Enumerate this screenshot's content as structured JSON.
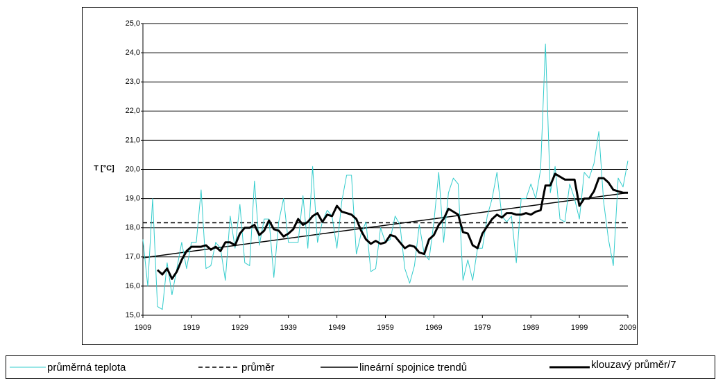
{
  "chart_data": {
    "type": "line",
    "ylabel": "T [°C]",
    "x": [
      1909,
      1910,
      1911,
      1912,
      1913,
      1914,
      1915,
      1916,
      1917,
      1918,
      1919,
      1920,
      1921,
      1922,
      1923,
      1924,
      1925,
      1926,
      1927,
      1928,
      1929,
      1930,
      1931,
      1932,
      1933,
      1934,
      1935,
      1936,
      1937,
      1938,
      1939,
      1940,
      1941,
      1942,
      1943,
      1944,
      1945,
      1946,
      1947,
      1948,
      1949,
      1950,
      1951,
      1952,
      1953,
      1954,
      1955,
      1956,
      1957,
      1958,
      1959,
      1960,
      1961,
      1962,
      1963,
      1964,
      1965,
      1966,
      1967,
      1968,
      1969,
      1970,
      1971,
      1972,
      1973,
      1974,
      1975,
      1976,
      1977,
      1978,
      1979,
      1980,
      1981,
      1982,
      1983,
      1984,
      1985,
      1986,
      1987,
      1988,
      1989,
      1990,
      1991,
      1992,
      1993,
      1994,
      1995,
      1996,
      1997,
      1998,
      1999,
      2000,
      2001,
      2002,
      2003,
      2004,
      2005,
      2006,
      2007,
      2008,
      2009
    ],
    "series": [
      {
        "name": "průměrná teplota",
        "color": "#33cccc",
        "width": 1,
        "values": [
          17.6,
          16.0,
          19.0,
          15.3,
          15.2,
          16.8,
          15.7,
          16.6,
          17.5,
          16.6,
          17.5,
          17.5,
          19.3,
          16.6,
          16.7,
          17.5,
          17.3,
          16.2,
          18.4,
          17.3,
          18.8,
          16.8,
          16.7,
          19.6,
          17.4,
          18.3,
          18.3,
          16.3,
          18.2,
          19.0,
          17.5,
          17.5,
          17.5,
          19.1,
          17.3,
          20.1,
          17.5,
          18.2,
          18.6,
          18.4,
          17.3,
          18.9,
          19.8,
          19.8,
          17.1,
          17.8,
          18.2,
          16.5,
          16.6,
          18.0,
          17.5,
          17.6,
          18.4,
          18.1,
          16.6,
          16.1,
          16.7,
          18.1,
          17.1,
          16.9,
          18.2,
          19.9,
          17.5,
          19.2,
          19.7,
          19.5,
          16.2,
          16.9,
          16.2,
          17.3,
          17.3,
          18.4,
          19.0,
          19.9,
          18.4,
          18.2,
          18.4,
          16.8,
          19.0,
          19.0,
          19.5,
          19.0,
          20.0,
          24.3,
          19.2,
          20.1,
          18.3,
          18.2,
          19.5,
          19.0,
          18.3,
          19.9,
          19.7,
          20.2,
          21.3,
          18.9,
          17.6,
          16.7,
          19.7,
          19.4,
          20.3
        ]
      },
      {
        "name": "klouzavý průměr/7",
        "color": "#000000",
        "width": 3,
        "values": [
          null,
          null,
          null,
          16.55,
          16.4,
          16.6,
          16.25,
          16.5,
          16.9,
          17.2,
          17.35,
          17.35,
          17.35,
          17.4,
          17.25,
          17.35,
          17.2,
          17.5,
          17.5,
          17.4,
          17.8,
          18.0,
          18.0,
          18.1,
          17.75,
          17.9,
          18.25,
          17.95,
          17.9,
          17.7,
          17.8,
          17.95,
          18.3,
          18.1,
          18.2,
          18.4,
          18.5,
          18.2,
          18.45,
          18.4,
          18.75,
          18.55,
          18.5,
          18.45,
          18.3,
          17.9,
          17.6,
          17.45,
          17.55,
          17.45,
          17.5,
          17.75,
          17.7,
          17.5,
          17.3,
          17.4,
          17.35,
          17.15,
          17.1,
          17.6,
          17.75,
          18.1,
          18.3,
          18.65,
          18.55,
          18.45,
          17.85,
          17.8,
          17.4,
          17.3,
          17.8,
          18.05,
          18.3,
          18.45,
          18.35,
          18.5,
          18.5,
          18.45,
          18.45,
          18.5,
          18.45,
          18.55,
          18.6,
          19.45,
          19.45,
          19.85,
          19.75,
          19.65,
          19.65,
          19.65,
          18.75,
          19.0,
          19.0,
          19.25,
          19.7,
          19.7,
          19.55,
          19.3,
          19.25,
          19.2,
          19.2
        ]
      }
    ],
    "mean": {
      "name": "průměr",
      "value": 18.17,
      "color": "#000000"
    },
    "trend": {
      "name": "lineární spojnice trendů",
      "color": "#000000",
      "x": [
        1909,
        2009
      ],
      "values": [
        16.97,
        19.2
      ]
    },
    "xlim": [
      1909,
      2009
    ],
    "xticks": [
      1909,
      1919,
      1929,
      1939,
      1949,
      1959,
      1969,
      1979,
      1989,
      1999,
      2009
    ],
    "ylim": [
      15,
      25
    ],
    "yticks": [
      {
        "value": 15,
        "label": "15,0"
      },
      {
        "value": 16,
        "label": "16,0"
      },
      {
        "value": 17,
        "label": "17,0"
      },
      {
        "value": 18,
        "label": "18,0"
      },
      {
        "value": 19,
        "label": "19,0"
      },
      {
        "value": 20,
        "label": "20,0"
      },
      {
        "value": 21,
        "label": "21,0"
      },
      {
        "value": 22,
        "label": "22,0"
      },
      {
        "value": 23,
        "label": "23,0"
      },
      {
        "value": 24,
        "label": "24,0"
      },
      {
        "value": 25,
        "label": "25,0"
      }
    ],
    "grid": true
  }
}
